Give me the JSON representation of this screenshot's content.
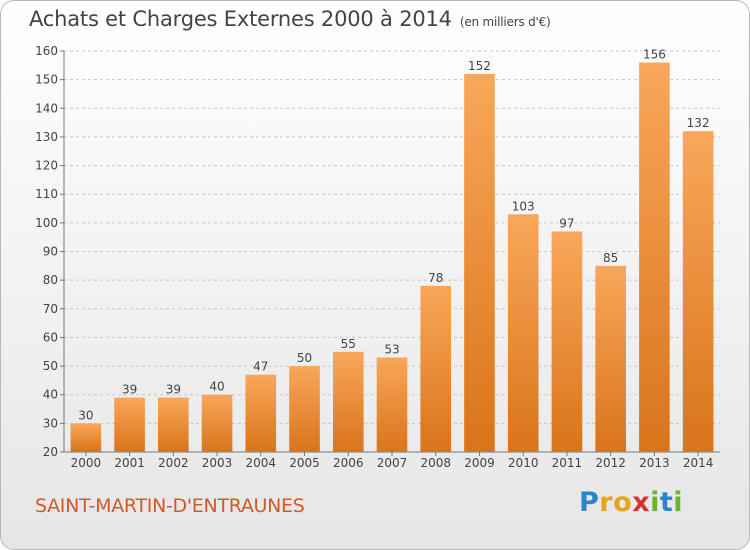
{
  "title": "Achats et Charges Externes 2000 à 2014",
  "title_unit": "(en milliers d'€)",
  "town": "SAINT-MARTIN-D'ENTRAUNES",
  "logo": {
    "text": "Proxiti",
    "letters": [
      {
        "char": "P",
        "color": "#2a86c8"
      },
      {
        "char": "r",
        "color": "#e8a41c"
      },
      {
        "char": "o",
        "color": "#e8a41c"
      },
      {
        "char": "x",
        "color": "#d8322a"
      },
      {
        "char": "i",
        "color": "#6ab42c"
      },
      {
        "char": "t",
        "color": "#2a86c8"
      },
      {
        "char": "i",
        "color": "#6ab42c"
      }
    ]
  },
  "colors": {
    "bar_top": "#f9a75a",
    "bar_bottom": "#d9741a",
    "grid": "#c8c8c8",
    "axis_text": "#444444"
  },
  "chart_data": {
    "type": "bar",
    "categories": [
      "2000",
      "2001",
      "2002",
      "2003",
      "2004",
      "2005",
      "2006",
      "2007",
      "2008",
      "2009",
      "2010",
      "2011",
      "2012",
      "2013",
      "2014"
    ],
    "values": [
      30,
      39,
      39,
      40,
      47,
      50,
      55,
      53,
      78,
      152,
      103,
      97,
      85,
      156,
      132
    ],
    "ylim": [
      20,
      160
    ],
    "yticks": [
      20,
      30,
      40,
      50,
      60,
      70,
      80,
      90,
      100,
      110,
      120,
      130,
      140,
      150,
      160
    ],
    "grid": true,
    "data_labels": true
  }
}
